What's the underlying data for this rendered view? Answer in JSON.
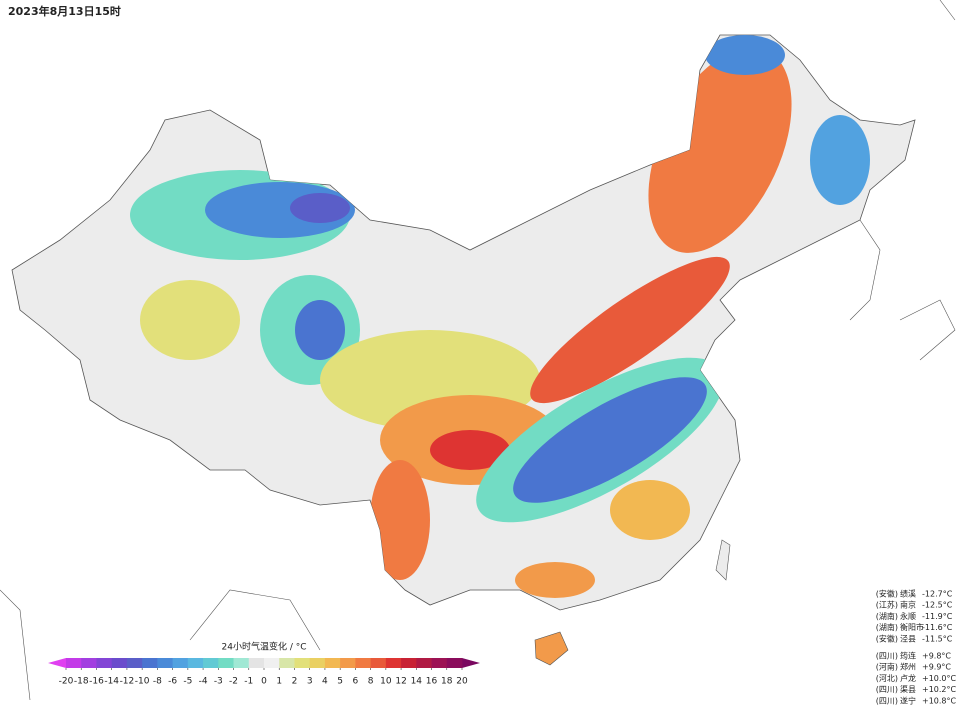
{
  "header": {
    "title": "2023年8月13日15时"
  },
  "legend": {
    "label": "24小时气温变化 / °C",
    "ticks": [
      -20,
      -18,
      -16,
      -14,
      -12,
      -10,
      -8,
      -6,
      -5,
      -4,
      -3,
      -2,
      -1,
      0,
      1,
      2,
      3,
      4,
      5,
      6,
      8,
      10,
      12,
      14,
      16,
      18,
      20
    ],
    "colors": [
      "#c33be8",
      "#a23fe0",
      "#8345d6",
      "#6a4ccc",
      "#5a5ec8",
      "#4a74d0",
      "#4a8ad8",
      "#52a2e0",
      "#5ab8e0",
      "#62cad4",
      "#72dcc4",
      "#a0e8d4",
      "#e4e4e4",
      "#f0f0f0",
      "#d8e6a8",
      "#e2e07a",
      "#ead062",
      "#f2b852",
      "#f29a4a",
      "#f07a42",
      "#e85a3a",
      "#de3432",
      "#c82234",
      "#b01a44",
      "#9c1254",
      "#8a0c5c"
    ],
    "under_color": "#e040f0",
    "over_color": "#7a0860"
  },
  "stations": {
    "coldest": [
      [
        "(安徽)",
        "绩溪",
        "-12.7°C"
      ],
      [
        "(江苏)",
        "南京",
        "-12.5°C"
      ],
      [
        "(湖南)",
        "永顺",
        "-11.9°C"
      ],
      [
        "(湖南)",
        "衡阳市",
        "-11.6°C"
      ],
      [
        "(安徽)",
        "泾县",
        "-11.5°C"
      ]
    ],
    "warmest": [
      [
        "(四川)",
        "筠连",
        "+9.8°C"
      ],
      [
        "(河南)",
        "郑州",
        "+9.9°C"
      ],
      [
        "(河北)",
        "卢龙",
        "+10.0°C"
      ],
      [
        "(四川)",
        "渠县",
        "+10.2°C"
      ],
      [
        "(四川)",
        "遂宁",
        "+10.8°C"
      ]
    ]
  }
}
